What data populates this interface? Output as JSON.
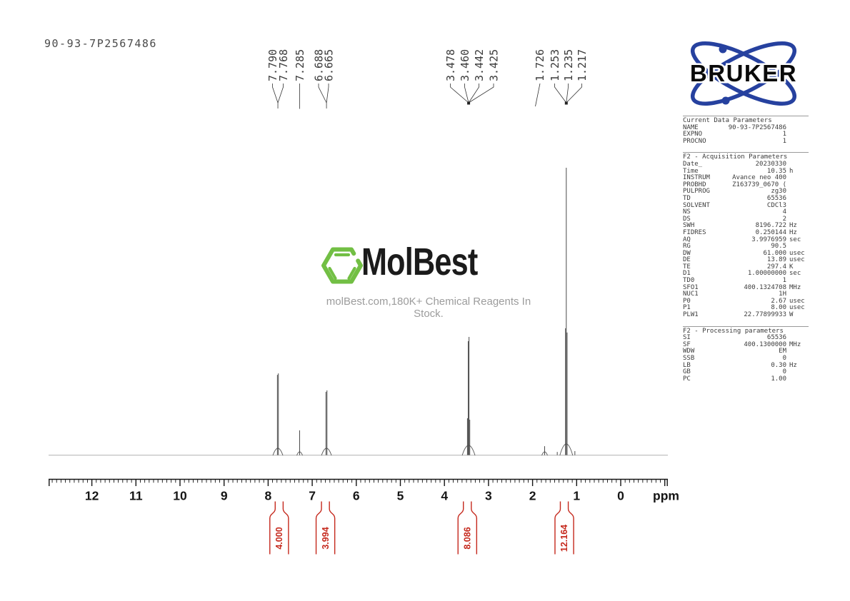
{
  "sample_id": "90-93-7P2567486",
  "bruker_logo": {
    "text": "BRUKER"
  },
  "watermark": {
    "brand": "MolBest",
    "tagline": "molBest.com,180K+ Chemical Reagents In Stock."
  },
  "axis": {
    "unit_label": "ppm"
  },
  "colors": {
    "integral_red": "#c5281c",
    "bruker_blue": "#26419f",
    "molbest_green": "#72bf44",
    "axis_black": "#151515",
    "trace_gray": "#4a4a4a",
    "baseline_gray": "#b0b0b0",
    "label_gray": "#3b3b3b"
  },
  "parameters_panel": {
    "sections": [
      {
        "title": "Current Data Parameters",
        "rows": [
          [
            "NAME",
            "90-93-7P2567486",
            ""
          ],
          [
            "EXPNO",
            "1",
            ""
          ],
          [
            "PROCNO",
            "1",
            ""
          ]
        ]
      },
      {
        "title": "F2 - Acquisition Parameters",
        "rows": [
          [
            "Date_",
            "20230330",
            ""
          ],
          [
            "Time",
            "10.35",
            "h"
          ],
          [
            "INSTRUM",
            "Avance neo 400",
            ""
          ],
          [
            "PROBHD",
            "Z163739_0670 (",
            ""
          ],
          [
            "PULPROG",
            "zg30",
            ""
          ],
          [
            "TD",
            "65536",
            ""
          ],
          [
            "SOLVENT",
            "CDCl3",
            ""
          ],
          [
            "NS",
            "4",
            ""
          ],
          [
            "DS",
            "2",
            ""
          ],
          [
            "SWH",
            "8196.722",
            "Hz"
          ],
          [
            "FIDRES",
            "0.250144",
            "Hz"
          ],
          [
            "AQ",
            "3.9976959",
            "sec"
          ],
          [
            "RG",
            "90.5",
            ""
          ],
          [
            "DW",
            "61.000",
            "usec"
          ],
          [
            "DE",
            "13.89",
            "usec"
          ],
          [
            "TE",
            "297.4",
            "K"
          ],
          [
            "D1",
            "1.00000000",
            "sec"
          ],
          [
            "TD0",
            "1",
            ""
          ],
          [
            "SFO1",
            "400.1324708",
            "MHz"
          ],
          [
            "NUC1",
            "1H",
            ""
          ],
          [
            "P0",
            "2.67",
            "usec"
          ],
          [
            "P1",
            "8.00",
            "usec"
          ],
          [
            "PLW1",
            "22.77899933",
            "W"
          ]
        ]
      },
      {
        "title": "F2 - Processing parameters",
        "rows": [
          [
            "SI",
            "65536",
            ""
          ],
          [
            "SF",
            "400.1300000",
            "MHz"
          ],
          [
            "WDW",
            "EM",
            ""
          ],
          [
            "SSB",
            "0",
            ""
          ],
          [
            "LB",
            "0.30",
            "Hz"
          ],
          [
            "GB",
            "0",
            ""
          ],
          [
            "PC",
            "1.00",
            ""
          ]
        ]
      }
    ]
  },
  "chart_data": {
    "type": "line",
    "technique": "1H NMR spectrum",
    "xlabel": "ppm",
    "x_ticks": [
      12,
      11,
      10,
      9,
      8,
      7,
      6,
      5,
      4,
      3,
      2,
      1,
      0
    ],
    "x_range_ppm": [
      12.95,
      -1.07
    ],
    "minor_tick_step_ppm": 0.1,
    "peaks": [
      {
        "ppm": 7.79,
        "rel_intensity": 0.28
      },
      {
        "ppm": 7.768,
        "rel_intensity": 0.285
      },
      {
        "ppm": 7.285,
        "rel_intensity": 0.087
      },
      {
        "ppm": 6.688,
        "rel_intensity": 0.221
      },
      {
        "ppm": 6.665,
        "rel_intensity": 0.226
      },
      {
        "ppm": 3.478,
        "rel_intensity": 0.129
      },
      {
        "ppm": 3.46,
        "rel_intensity": 0.397
      },
      {
        "ppm": 3.442,
        "rel_intensity": 0.412
      },
      {
        "ppm": 3.425,
        "rel_intensity": 0.124
      },
      {
        "ppm": 1.726,
        "rel_intensity": 0.032
      },
      {
        "ppm": 1.44,
        "rel_intensity": 0.012
      },
      {
        "ppm": 1.253,
        "rel_intensity": 0.442
      },
      {
        "ppm": 1.235,
        "rel_intensity": 1.0
      },
      {
        "ppm": 1.217,
        "rel_intensity": 0.427
      },
      {
        "ppm": 1.04,
        "rel_intensity": 0.015
      }
    ],
    "peak_label_groups": [
      {
        "labels": [
          "7.790",
          "7.768"
        ],
        "converge_ppm": 7.779,
        "marker": "none"
      },
      {
        "labels": [
          "7.285"
        ],
        "converge_ppm": 7.285,
        "marker": "none"
      },
      {
        "labels": [
          "6.688",
          "6.665"
        ],
        "converge_ppm": 6.676,
        "marker": "none"
      },
      {
        "labels": [
          "3.478",
          "3.460",
          "3.442",
          "3.425"
        ],
        "converge_ppm": 3.451,
        "marker": "square"
      },
      {
        "labels": [
          "1.726"
        ],
        "converge_ppm": 1.726,
        "marker": "none",
        "slant": true
      },
      {
        "labels": [
          "1.253",
          "1.235",
          "1.217"
        ],
        "converge_ppm": 1.235,
        "marker": "square"
      }
    ],
    "integrals": [
      {
        "value": "4.000",
        "region_ppm": [
          7.84,
          7.66
        ]
      },
      {
        "value": "3.994",
        "region_ppm": [
          6.79,
          6.61
        ]
      },
      {
        "value": "8.086",
        "region_ppm": [
          3.57,
          3.39
        ]
      },
      {
        "value": "12.164",
        "region_ppm": [
          1.37,
          1.19
        ]
      }
    ]
  }
}
